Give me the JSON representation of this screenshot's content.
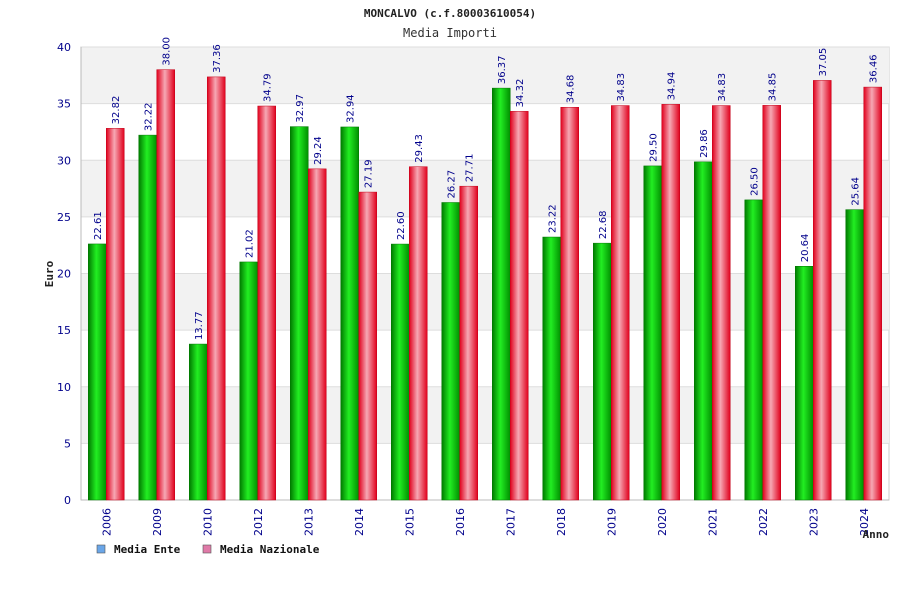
{
  "chart_data": {
    "type": "bar",
    "title": "MONCALVO (c.f.80003610054)",
    "subtitle": "Media Importi",
    "xlabel": "Anno",
    "ylabel": "Euro",
    "ylim": [
      0,
      40
    ],
    "yticks": [
      0,
      5,
      10,
      15,
      20,
      25,
      30,
      35,
      40
    ],
    "grid": true,
    "legend_position": "bottom-left",
    "categories": [
      "2006",
      "2009",
      "2010",
      "2012",
      "2013",
      "2014",
      "2015",
      "2016",
      "2017",
      "2018",
      "2019",
      "2020",
      "2021",
      "2022",
      "2023",
      "2024"
    ],
    "series": [
      {
        "name": "Media Ente",
        "color": "#00cc00",
        "values": [
          22.61,
          32.22,
          13.77,
          21.02,
          32.97,
          32.94,
          22.6,
          26.27,
          36.37,
          23.22,
          22.68,
          29.5,
          29.86,
          26.5,
          20.64,
          25.64
        ],
        "labels": [
          "22.61",
          "32.22",
          "13.77",
          "21.02",
          "32.97",
          "32.94",
          "22.60",
          "26.27",
          "36.37",
          "23.22",
          "22.68",
          "29.50",
          "29.86",
          "26.50",
          "20.64",
          "25.64"
        ]
      },
      {
        "name": "Media Nazionale",
        "color": "#e8102a",
        "values": [
          32.82,
          38.0,
          37.36,
          34.79,
          29.24,
          27.19,
          29.43,
          27.71,
          34.32,
          34.68,
          34.83,
          34.94,
          34.83,
          34.85,
          37.05,
          36.46
        ],
        "labels": [
          "32.82",
          "38.00",
          "37.36",
          "34.79",
          "29.24",
          "27.19",
          "29.43",
          "27.71",
          "34.32",
          "34.68",
          "34.83",
          "34.94",
          "34.83",
          "34.85",
          "37.05",
          "36.46"
        ]
      }
    ],
    "legend": [
      {
        "label": "Media Ente",
        "color": "#6aa6e8"
      },
      {
        "label": "Media Nazionale",
        "color": "#e07aa8"
      }
    ]
  }
}
